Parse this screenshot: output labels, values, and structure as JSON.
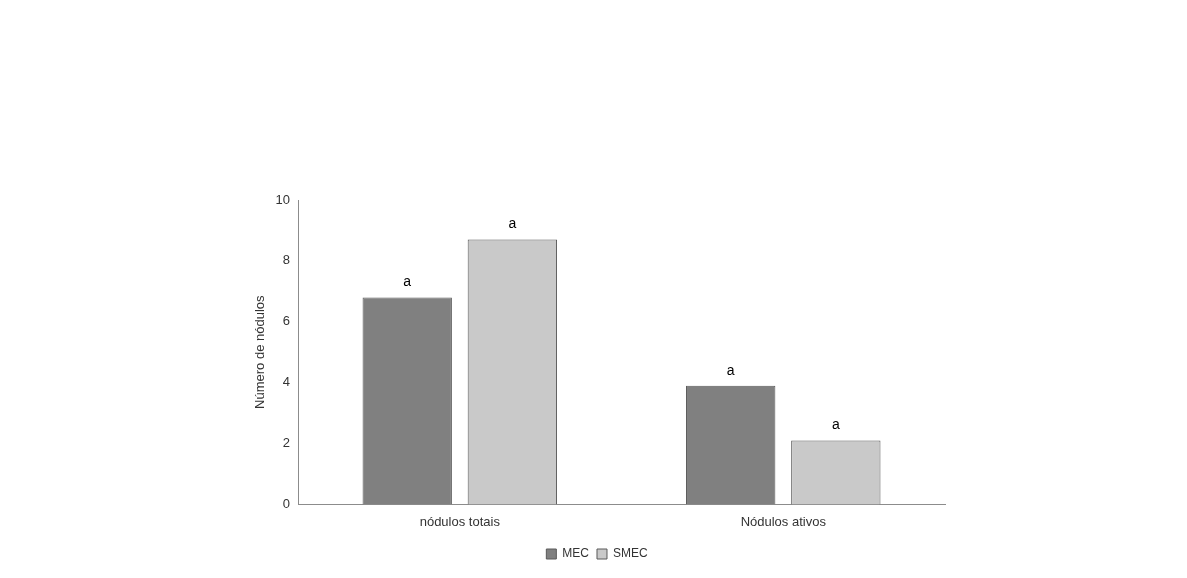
{
  "chart_data": {
    "type": "bar",
    "y_label": "Número de nódulos",
    "categories": [
      "nódulos totais",
      "Nódulos ativos"
    ],
    "series": [
      {
        "name": "MEC",
        "color": "#808080",
        "values": [
          6.8,
          3.9
        ]
      },
      {
        "name": "SMEC",
        "color": "#c9c9c9",
        "values": [
          8.7,
          2.1
        ]
      }
    ],
    "annotations": [
      {
        "series": "MEC",
        "category": "nódulos totais",
        "text": "a"
      },
      {
        "series": "SMEC",
        "category": "nódulos totais",
        "text": "a"
      },
      {
        "series": "MEC",
        "category": "Nódulos ativos",
        "text": "a"
      },
      {
        "series": "SMEC",
        "category": "Nódulos ativos",
        "text": "a"
      }
    ],
    "ylim": [
      0,
      10
    ],
    "yticks": [
      0,
      2,
      4,
      6,
      8,
      10
    ],
    "grid": false,
    "legend": "bottom"
  }
}
